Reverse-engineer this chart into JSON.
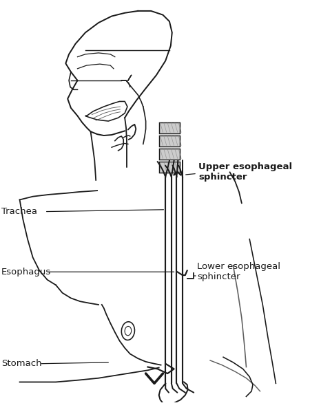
{
  "bg_color": "#ffffff",
  "line_color": "#1a1a1a",
  "lw": 1.3,
  "labels": {
    "trachea": "Trachea",
    "esophagus": "Esophagus",
    "stomach": "Stomach",
    "upper_sphincter": "Upper esophageal\nsphincter",
    "lower_sphincter": "Lower esophageal\nsphincter"
  },
  "figsize": [
    4.5,
    5.99
  ],
  "dpi": 100
}
